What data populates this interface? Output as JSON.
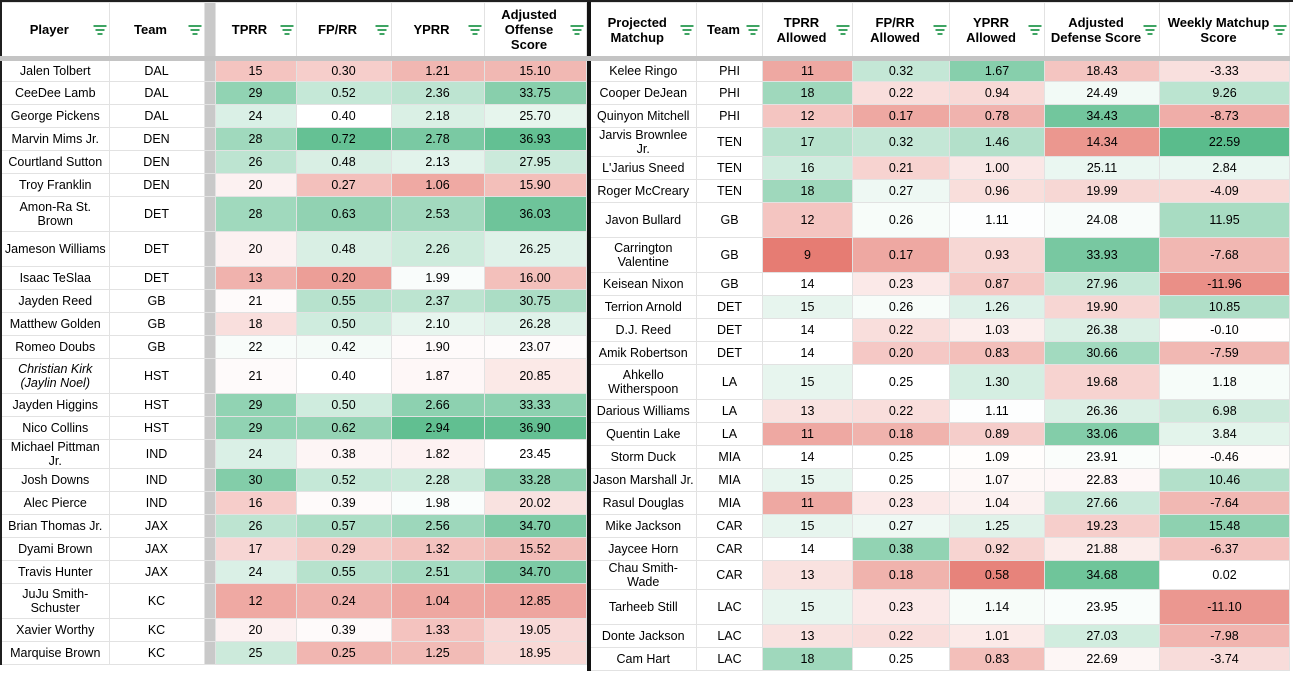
{
  "colors": {
    "scale_red": "#e67c73",
    "scale_green": "#57bb8a",
    "filter_icon_green": "#3fa463",
    "frozen_divider_gray": "#c9c9c9",
    "table_border_black": "#1f1f1f"
  },
  "offense_table": {
    "headers": [
      "Player",
      "Team",
      "TPRR",
      "FP/RR",
      "YPRR",
      "Adjusted Offense Score"
    ],
    "rows": [
      {
        "p": "Jalen Tolbert",
        "t": "DAL",
        "v": [
          "15",
          "0.30",
          "1.21",
          "15.10"
        ]
      },
      {
        "p": "CeeDee Lamb",
        "t": "DAL",
        "v": [
          "29",
          "0.52",
          "2.36",
          "33.75"
        ]
      },
      {
        "p": "George Pickens",
        "t": "DAL",
        "v": [
          "24",
          "0.40",
          "2.18",
          "25.70"
        ]
      },
      {
        "p": "Marvin Mims Jr.",
        "t": "DEN",
        "v": [
          "28",
          "0.72",
          "2.78",
          "36.93"
        ]
      },
      {
        "p": "Courtland Sutton",
        "t": "DEN",
        "v": [
          "26",
          "0.48",
          "2.13",
          "27.95"
        ]
      },
      {
        "p": "Troy Franklin",
        "t": "DEN",
        "v": [
          "20",
          "0.27",
          "1.06",
          "15.90"
        ]
      },
      {
        "p": "Amon-Ra St. Brown",
        "t": "DET",
        "v": [
          "28",
          "0.63",
          "2.53",
          "36.03"
        ],
        "tall": true
      },
      {
        "p": "Jameson Williams",
        "t": "DET",
        "v": [
          "20",
          "0.48",
          "2.26",
          "26.25"
        ],
        "tall": true
      },
      {
        "p": "Isaac TeSlaa",
        "t": "DET",
        "v": [
          "13",
          "0.20",
          "1.99",
          "16.00"
        ]
      },
      {
        "p": "Jayden Reed",
        "t": "GB",
        "v": [
          "21",
          "0.55",
          "2.37",
          "30.75"
        ]
      },
      {
        "p": "Matthew Golden",
        "t": "GB",
        "v": [
          "18",
          "0.50",
          "2.10",
          "26.28"
        ]
      },
      {
        "p": "Romeo Doubs",
        "t": "GB",
        "v": [
          "22",
          "0.42",
          "1.90",
          "23.07"
        ]
      },
      {
        "p": "Christian Kirk (Jaylin Noel)",
        "t": "HST",
        "v": [
          "21",
          "0.40",
          "1.87",
          "20.85"
        ],
        "tall": true,
        "italic": true
      },
      {
        "p": "Jayden Higgins",
        "t": "HST",
        "v": [
          "29",
          "0.50",
          "2.66",
          "33.33"
        ]
      },
      {
        "p": "Nico Collins",
        "t": "HST",
        "v": [
          "29",
          "0.62",
          "2.94",
          "36.90"
        ]
      },
      {
        "p": "Michael Pittman Jr.",
        "t": "IND",
        "v": [
          "24",
          "0.38",
          "1.82",
          "23.45"
        ]
      },
      {
        "p": "Josh Downs",
        "t": "IND",
        "v": [
          "30",
          "0.52",
          "2.28",
          "33.28"
        ]
      },
      {
        "p": "Alec Pierce",
        "t": "IND",
        "v": [
          "16",
          "0.39",
          "1.98",
          "20.02"
        ]
      },
      {
        "p": "Brian Thomas Jr.",
        "t": "JAX",
        "v": [
          "26",
          "0.57",
          "2.56",
          "34.70"
        ]
      },
      {
        "p": "Dyami Brown",
        "t": "JAX",
        "v": [
          "17",
          "0.29",
          "1.32",
          "15.52"
        ]
      },
      {
        "p": "Travis Hunter",
        "t": "JAX",
        "v": [
          "24",
          "0.55",
          "2.51",
          "34.70"
        ]
      },
      {
        "p": "JuJu Smith-Schuster",
        "t": "KC",
        "v": [
          "12",
          "0.24",
          "1.04",
          "12.85"
        ],
        "tall": true
      },
      {
        "p": "Xavier Worthy",
        "t": "KC",
        "v": [
          "20",
          "0.39",
          "1.33",
          "19.05"
        ]
      },
      {
        "p": "Marquise Brown",
        "t": "KC",
        "v": [
          "25",
          "0.25",
          "1.25",
          "18.95"
        ]
      }
    ]
  },
  "defense_table": {
    "headers": [
      "Projected Matchup",
      "Team",
      "TPRR Allowed",
      "FP/RR Allowed",
      "YPRR Allowed",
      "Adjusted Defense Score",
      "Weekly Matchup Score"
    ],
    "rows": [
      {
        "p": "Kelee Ringo",
        "t": "PHI",
        "v": [
          "11",
          "0.32",
          "1.67",
          "18.43",
          "-3.33"
        ]
      },
      {
        "p": "Cooper DeJean",
        "t": "PHI",
        "v": [
          "18",
          "0.22",
          "0.94",
          "24.49",
          "9.26"
        ]
      },
      {
        "p": "Quinyon Mitchell",
        "t": "PHI",
        "v": [
          "12",
          "0.17",
          "0.78",
          "34.43",
          "-8.73"
        ]
      },
      {
        "p": "Jarvis Brownlee Jr.",
        "t": "TEN",
        "v": [
          "17",
          "0.32",
          "1.46",
          "14.34",
          "22.59"
        ]
      },
      {
        "p": "L'Jarius Sneed",
        "t": "TEN",
        "v": [
          "16",
          "0.21",
          "1.00",
          "25.11",
          "2.84"
        ]
      },
      {
        "p": "Roger McCreary",
        "t": "TEN",
        "v": [
          "18",
          "0.27",
          "0.96",
          "19.99",
          "-4.09"
        ]
      },
      {
        "p": "Javon Bullard",
        "t": "GB",
        "v": [
          "12",
          "0.26",
          "1.11",
          "24.08",
          "11.95"
        ],
        "tall": true
      },
      {
        "p": "Carrington Valentine",
        "t": "GB",
        "v": [
          "9",
          "0.17",
          "0.93",
          "33.93",
          "-7.68"
        ],
        "tall": true
      },
      {
        "p": "Keisean Nixon",
        "t": "GB",
        "v": [
          "14",
          "0.23",
          "0.87",
          "27.96",
          "-11.96"
        ]
      },
      {
        "p": "Terrion Arnold",
        "t": "DET",
        "v": [
          "15",
          "0.26",
          "1.26",
          "19.90",
          "10.85"
        ]
      },
      {
        "p": "D.J. Reed",
        "t": "DET",
        "v": [
          "14",
          "0.22",
          "1.03",
          "26.38",
          "-0.10"
        ]
      },
      {
        "p": "Amik Robertson",
        "t": "DET",
        "v": [
          "14",
          "0.20",
          "0.83",
          "30.66",
          "-7.59"
        ]
      },
      {
        "p": "Ahkello Witherspoon",
        "t": "LA",
        "v": [
          "15",
          "0.25",
          "1.30",
          "19.68",
          "1.18"
        ],
        "tall": true,
        "italic": false
      },
      {
        "p": "Darious Williams",
        "t": "LA",
        "v": [
          "13",
          "0.22",
          "1.11",
          "26.36",
          "6.98"
        ]
      },
      {
        "p": "Quentin Lake",
        "t": "LA",
        "v": [
          "11",
          "0.18",
          "0.89",
          "33.06",
          "3.84"
        ]
      },
      {
        "p": "Storm Duck",
        "t": "MIA",
        "v": [
          "14",
          "0.25",
          "1.09",
          "23.91",
          "-0.46"
        ]
      },
      {
        "p": "Jason Marshall Jr.",
        "t": "MIA",
        "v": [
          "15",
          "0.25",
          "1.07",
          "22.83",
          "10.46"
        ]
      },
      {
        "p": "Rasul Douglas",
        "t": "MIA",
        "v": [
          "11",
          "0.23",
          "1.04",
          "27.66",
          "-7.64"
        ]
      },
      {
        "p": "Mike Jackson",
        "t": "CAR",
        "v": [
          "15",
          "0.27",
          "1.25",
          "19.23",
          "15.48"
        ]
      },
      {
        "p": "Jaycee Horn",
        "t": "CAR",
        "v": [
          "14",
          "0.38",
          "0.92",
          "21.88",
          "-6.37"
        ]
      },
      {
        "p": "Chau Smith-Wade",
        "t": "CAR",
        "v": [
          "13",
          "0.18",
          "0.58",
          "34.68",
          "0.02"
        ]
      },
      {
        "p": "Tarheeb Still",
        "t": "LAC",
        "v": [
          "15",
          "0.23",
          "1.14",
          "23.95",
          "-11.10"
        ],
        "tall": true
      },
      {
        "p": "Donte Jackson",
        "t": "LAC",
        "v": [
          "13",
          "0.22",
          "1.01",
          "27.03",
          "-7.98"
        ]
      },
      {
        "p": "Cam Hart",
        "t": "LAC",
        "v": [
          "18",
          "0.25",
          "0.83",
          "22.69",
          "-3.74"
        ]
      }
    ]
  }
}
